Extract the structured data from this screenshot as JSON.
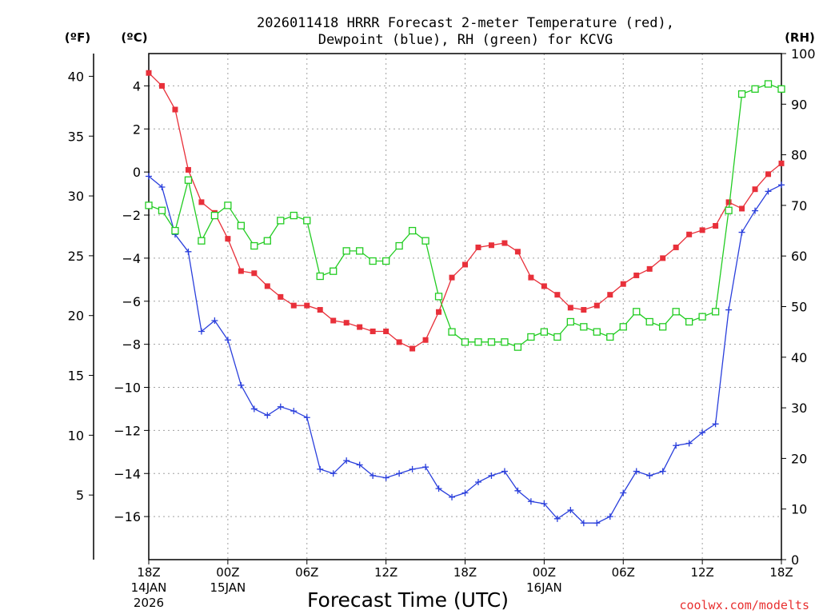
{
  "chart_data": {
    "type": "line",
    "title_line1": "2026011418 HRRR Forecast 2-meter Temperature (red),",
    "title_line2": "Dewpoint (blue), RH (green) for KCVG",
    "xlabel": "Forecast Time (UTC)",
    "ylabel_f": "(ºF)",
    "ylabel_c": "(ºC)",
    "ylabel_rh": "(RH)",
    "watermark": "coolwx.com/modelts",
    "x_range_hours": [
      0,
      48
    ],
    "ylim_c": [
      -18.0,
      5.5
    ],
    "ylim_rh": [
      0,
      100
    ],
    "ylim_f": [
      -0.4,
      41.9
    ],
    "x_ticks": [
      {
        "hour": 0,
        "label": "18Z",
        "sub1": "14JAN",
        "sub2": "2026"
      },
      {
        "hour": 6,
        "label": "00Z",
        "sub1": "15JAN",
        "sub2": ""
      },
      {
        "hour": 12,
        "label": "06Z",
        "sub1": "",
        "sub2": ""
      },
      {
        "hour": 18,
        "label": "12Z",
        "sub1": "",
        "sub2": ""
      },
      {
        "hour": 24,
        "label": "18Z",
        "sub1": "",
        "sub2": ""
      },
      {
        "hour": 30,
        "label": "00Z",
        "sub1": "16JAN",
        "sub2": ""
      },
      {
        "hour": 36,
        "label": "06Z",
        "sub1": "",
        "sub2": ""
      },
      {
        "hour": 42,
        "label": "12Z",
        "sub1": "",
        "sub2": ""
      },
      {
        "hour": 48,
        "label": "18Z",
        "sub1": "",
        "sub2": ""
      }
    ],
    "c_ticks": [
      4,
      2,
      0,
      -2,
      -4,
      -6,
      -8,
      -10,
      -12,
      -14,
      -16
    ],
    "c_tick_labels": [
      "4",
      "2",
      "0",
      "−2",
      "−4",
      "−6",
      "−8",
      "−10",
      "−12",
      "−14",
      "−16"
    ],
    "f_ticks": [
      40,
      35,
      30,
      25,
      20,
      15,
      10,
      5
    ],
    "f_tick_labels": [
      "40",
      "35",
      "30",
      "25",
      "20",
      "15",
      "10",
      "5"
    ],
    "rh_ticks": [
      100,
      90,
      80,
      70,
      60,
      50,
      40,
      30,
      20,
      10,
      0
    ],
    "rh_tick_labels": [
      "100",
      "90",
      "80",
      "70",
      "60",
      "50",
      "40",
      "30",
      "20",
      "10",
      "0"
    ],
    "series": [
      {
        "name": "2-meter Temperature",
        "units": "C",
        "color": "#e8303a",
        "marker": "filled-square",
        "values": [
          4.6,
          4.0,
          2.9,
          0.1,
          -1.4,
          -1.9,
          -3.1,
          -4.6,
          -4.7,
          -5.3,
          -5.8,
          -6.2,
          -6.2,
          -6.4,
          -6.9,
          -7.0,
          -7.2,
          -7.4,
          -7.4,
          -7.9,
          -8.2,
          -7.8,
          -6.5,
          -4.9,
          -4.3,
          -3.5,
          -3.4,
          -3.3,
          -3.7,
          -4.9,
          -5.3,
          -5.7,
          -6.3,
          -6.4,
          -6.2,
          -5.7,
          -5.2,
          -4.8,
          -4.5,
          -4.0,
          -3.5,
          -2.9,
          -2.7,
          -2.5,
          -1.4,
          -1.7,
          -0.8,
          -0.1,
          0.4
        ]
      },
      {
        "name": "Dewpoint",
        "units": "C",
        "color": "#2a3fdc",
        "marker": "plus",
        "values": [
          -0.2,
          -0.7,
          -2.9,
          -3.7,
          -7.4,
          -6.9,
          -7.8,
          -9.9,
          -11.0,
          -11.3,
          -10.9,
          -11.1,
          -11.4,
          -13.8,
          -14.0,
          -13.4,
          -13.6,
          -14.1,
          -14.2,
          -14.0,
          -13.8,
          -13.7,
          -14.7,
          -15.1,
          -14.9,
          -14.4,
          -14.1,
          -13.9,
          -14.8,
          -15.3,
          -15.4,
          -16.1,
          -15.7,
          -16.3,
          -16.3,
          -16.0,
          -14.9,
          -13.9,
          -14.1,
          -13.9,
          -12.7,
          -12.6,
          -12.1,
          -11.7,
          -6.4,
          -2.8,
          -1.8,
          -0.9,
          -0.6
        ]
      },
      {
        "name": "RH",
        "units": "%",
        "color": "#22cc22",
        "marker": "open-square",
        "values": [
          70,
          69,
          65,
          75,
          63,
          68,
          70,
          66,
          62,
          63,
          67,
          68,
          67,
          56,
          57,
          61,
          61,
          59,
          59,
          62,
          65,
          63,
          52,
          45,
          43,
          43,
          43,
          43,
          42,
          44,
          45,
          44,
          47,
          46,
          45,
          44,
          46,
          49,
          47,
          46,
          49,
          47,
          48,
          49,
          69,
          92,
          93,
          94,
          93
        ]
      }
    ]
  }
}
